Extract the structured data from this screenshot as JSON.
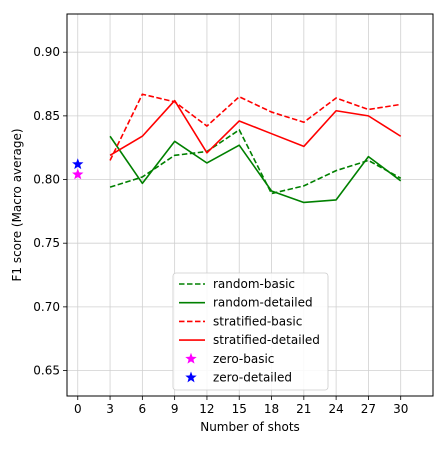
{
  "chart_data": {
    "type": "line",
    "title": "",
    "xlabel": "Number of shots",
    "ylabel": "F1 score (Macro average)",
    "xlim": [
      -1,
      33
    ],
    "ylim": [
      0.63,
      0.93
    ],
    "x_ticks": [
      0,
      3,
      6,
      9,
      12,
      15,
      18,
      21,
      24,
      27,
      30
    ],
    "y_ticks": [
      0.65,
      0.7,
      0.75,
      0.8,
      0.85,
      0.9
    ],
    "y_tick_labels": [
      "0.65",
      "0.70",
      "0.75",
      "0.80",
      "0.85",
      "0.90"
    ],
    "grid": true,
    "legend_position": "lower center",
    "series": [
      {
        "name": "random-basic",
        "kind": "line",
        "style": "dashed",
        "color": "#008000",
        "x": [
          3,
          6,
          9,
          12,
          15,
          18,
          21,
          24,
          27,
          30
        ],
        "y": [
          0.794,
          0.802,
          0.819,
          0.822,
          0.839,
          0.789,
          0.795,
          0.807,
          0.815,
          0.801
        ]
      },
      {
        "name": "random-detailed",
        "kind": "line",
        "style": "solid",
        "color": "#008000",
        "x": [
          3,
          6,
          9,
          12,
          15,
          18,
          21,
          24,
          27,
          30
        ],
        "y": [
          0.834,
          0.797,
          0.83,
          0.813,
          0.827,
          0.791,
          0.782,
          0.784,
          0.818,
          0.799
        ]
      },
      {
        "name": "stratified-basic",
        "kind": "line",
        "style": "dashed",
        "color": "#ff0000",
        "x": [
          3,
          6,
          9,
          12,
          15,
          18,
          21,
          24,
          27,
          30
        ],
        "y": [
          0.815,
          0.867,
          0.861,
          0.842,
          0.865,
          0.853,
          0.845,
          0.864,
          0.855,
          0.859
        ]
      },
      {
        "name": "stratified-detailed",
        "kind": "line",
        "style": "solid",
        "color": "#ff0000",
        "x": [
          3,
          6,
          9,
          12,
          15,
          18,
          21,
          24,
          27,
          30
        ],
        "y": [
          0.819,
          0.834,
          0.862,
          0.821,
          0.846,
          0.836,
          0.826,
          0.854,
          0.85,
          0.834
        ]
      },
      {
        "name": "zero-basic",
        "kind": "marker",
        "marker": "star",
        "color": "#ff00ff",
        "x": [
          0
        ],
        "y": [
          0.804
        ]
      },
      {
        "name": "zero-detailed",
        "kind": "marker",
        "marker": "star",
        "color": "#0000ff",
        "x": [
          0
        ],
        "y": [
          0.812
        ]
      }
    ]
  }
}
